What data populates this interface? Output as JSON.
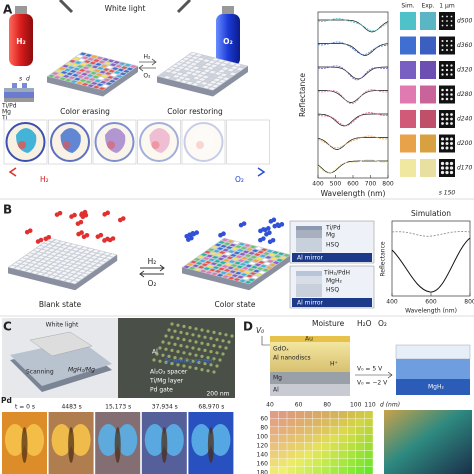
{
  "panel_a": {
    "label": "A",
    "light": "White light",
    "bottle_left": "H₂",
    "bottle_right": "O₂",
    "arrow_top": "H₂",
    "arrow_bottom": "O₂",
    "inset": {
      "s": "s",
      "d": "d",
      "layers": [
        "Ti/Pd",
        "Mg",
        "Ti"
      ]
    },
    "captions": [
      "Color erasing",
      "Color restoring"
    ],
    "gradient": {
      "start": "H₂",
      "end": "O₂"
    },
    "spectra": {
      "y_label": "Reflectance",
      "x_label": "Wavelength (nm)",
      "x_ticks": [
        400,
        500,
        600,
        700,
        800
      ],
      "columns": [
        "Sim.",
        "Exp.",
        "1 μm"
      ],
      "rows": [
        "d500",
        "d360",
        "d320",
        "d280",
        "d240",
        "d200",
        "d170"
      ],
      "footer": "s 150"
    }
  },
  "panel_b": {
    "label": "B",
    "arrow_top": "H₂",
    "arrow_bottom": "O₂",
    "captions": [
      "Blank state",
      "Color state"
    ],
    "stack_before": {
      "layers": [
        "Ti/Pd",
        "Mg",
        "HSQ"
      ],
      "mirror": "Al mirror"
    },
    "stack_after": {
      "layers": [
        "TiH₂/PdH",
        "MgH₂",
        "HSQ"
      ],
      "mirror": "Al mirror"
    },
    "plot": {
      "title": "Simulation",
      "y_label": "Reflectance",
      "x_label": "Wavelength (nm)",
      "x_ticks": [
        400,
        600,
        800
      ]
    }
  },
  "panel_c": {
    "label": "C",
    "light": "White light",
    "scanning": "Scanning",
    "state": "MgH₂/Mg",
    "layers": [
      "Al",
      "Scanning screen",
      "Al₂O₃ spacer",
      "Ti/Mg layer",
      "Pd gate"
    ],
    "scale_bar": "200 nm",
    "series_label": "Pd",
    "times": [
      "t = 0 s",
      "4483 s",
      "15,173 s",
      "37,934 s",
      "68,970 s"
    ]
  },
  "panel_d": {
    "label": "D",
    "voltage": "V₀",
    "moisture": "Moisture",
    "gases": [
      "H₂O",
      "O₂"
    ],
    "layers": [
      "Au",
      "GdOₓ",
      "Al nanodiscs",
      "H⁺",
      "Mg",
      "Al"
    ],
    "bias": [
      "V₀ = 5 V",
      "V₀ = −2 V"
    ],
    "product": "MgH₂",
    "map": {
      "x_label": "d (nm)",
      "x_ticks": [
        40,
        60,
        80,
        100,
        110
      ],
      "y_ticks": [
        60,
        80,
        100,
        120,
        140,
        160,
        180
      ]
    }
  }
}
